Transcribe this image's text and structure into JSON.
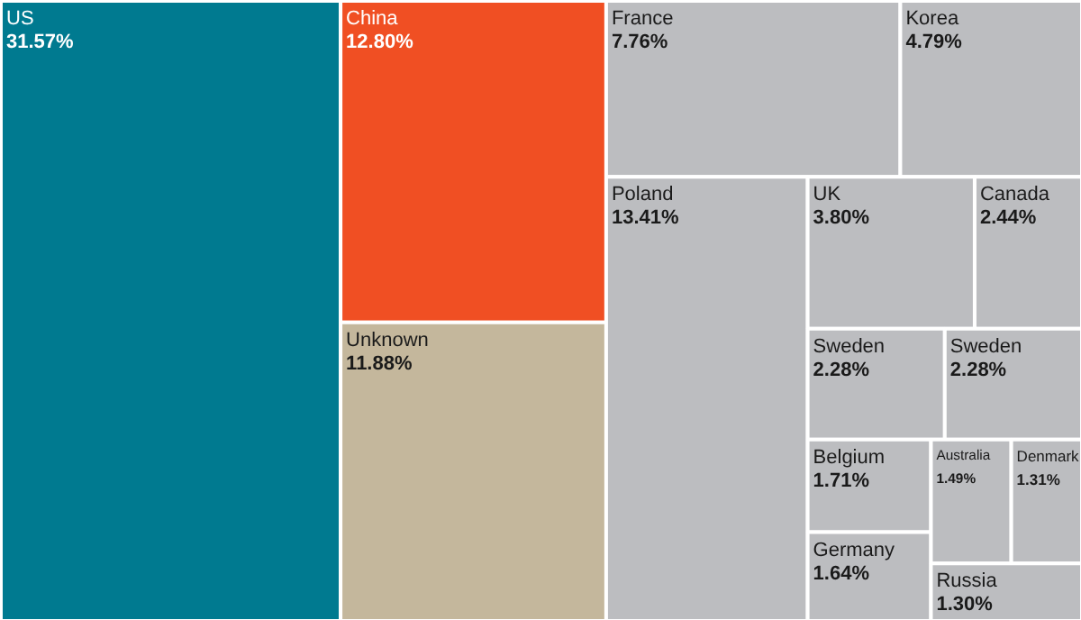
{
  "chart_data": {
    "type": "other",
    "categories": [
      "US",
      "China",
      "Unknown",
      "France",
      "Korea",
      "Poland",
      "UK",
      "Canada",
      "Sweden",
      "Sweden",
      "Belgium",
      "Germany",
      "Australia",
      "Denmark",
      "Russia"
    ],
    "values": [
      31.57,
      12.8,
      11.88,
      7.76,
      4.79,
      13.41,
      3.8,
      2.44,
      2.28,
      2.28,
      1.71,
      1.64,
      1.49,
      1.31,
      1.3
    ],
    "value_labels": [
      "31.57%",
      "12.80%",
      "11.88%",
      "7.76%",
      "4.79%",
      "13.41%",
      "3.80%",
      "2.44%",
      "2.28%",
      "2.28%",
      "1.71%",
      "1.64%",
      "1.49%",
      "1.31%",
      "1.30%"
    ],
    "colors": [
      "#007a90",
      "#f04f23",
      "#c4b79c",
      "#bcbdc0",
      "#bcbdc0",
      "#bcbdc0",
      "#bcbdc0",
      "#bcbdc0",
      "#bcbdc0",
      "#bcbdc0",
      "#bcbdc0",
      "#bcbdc0",
      "#bcbdc0",
      "#bcbdc0",
      "#bcbdc0"
    ]
  }
}
